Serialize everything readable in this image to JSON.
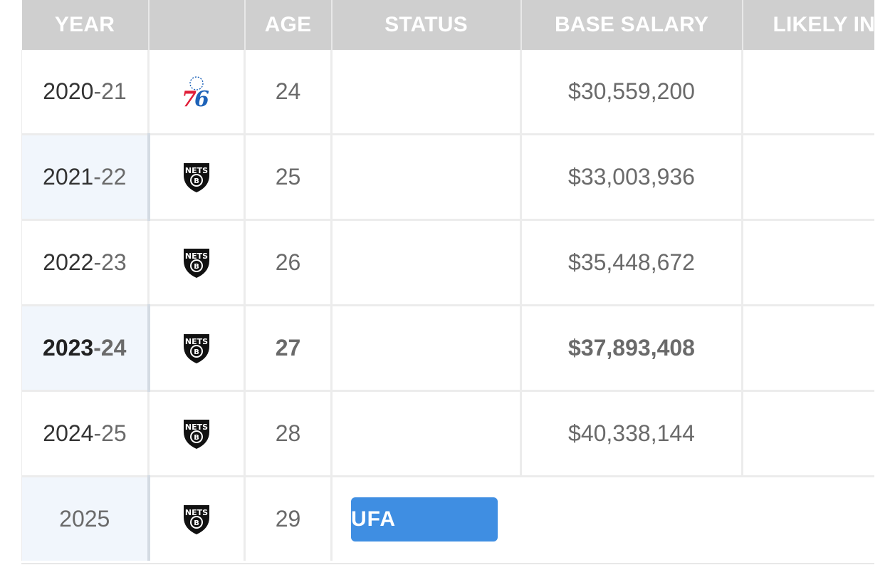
{
  "table": {
    "headers": {
      "year": "YEAR",
      "team": "",
      "age": "AGE",
      "status": "STATUS",
      "base_salary": "BASE SALARY",
      "likely": "LIKELY INC"
    },
    "rows": [
      {
        "year_start": "2020",
        "year_end": "-21",
        "team_icon": "sixers-76-logo-icon",
        "age": "24",
        "status": "",
        "base_salary": "$30,559,200",
        "likely": "-"
      },
      {
        "year_start": "2021",
        "year_end": "-22",
        "team_icon": "nets-logo-icon",
        "age": "25",
        "status": "",
        "base_salary": "$33,003,936",
        "likely": "-"
      },
      {
        "year_start": "2022",
        "year_end": "-23",
        "team_icon": "nets-logo-icon",
        "age": "26",
        "status": "",
        "base_salary": "$35,448,672",
        "likely": "-"
      },
      {
        "year_start": "2023",
        "year_end": "-24",
        "team_icon": "nets-logo-icon",
        "age": "27",
        "status": "",
        "base_salary": "$37,893,408",
        "likely": "-"
      },
      {
        "year_start": "2024",
        "year_end": "-25",
        "team_icon": "nets-logo-icon",
        "age": "28",
        "status": "",
        "base_salary": "$40,338,144",
        "likely": "-"
      },
      {
        "year_start": "2025",
        "year_end": "",
        "team_icon": "nets-logo-icon",
        "age": "29",
        "status": "UFA",
        "base_salary": "",
        "likely": ""
      }
    ]
  },
  "colors": {
    "header_bg": "#cfcfcf",
    "alt_year_bg": "#f1f6fc",
    "ufa_badge": "#3f8ee2",
    "sixers_red": "#e01e38",
    "sixers_blue": "#1d62b8",
    "nets_black": "#111111"
  }
}
